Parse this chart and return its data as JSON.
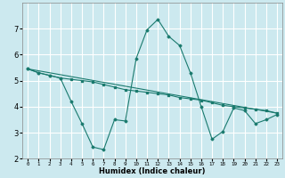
{
  "xlabel": "Humidex (Indice chaleur)",
  "ylabel": "",
  "background_color": "#cce9ef",
  "grid_color": "#ffffff",
  "line_color": "#1a7a6e",
  "xlim": [
    -0.5,
    23.5
  ],
  "ylim": [
    2,
    8
  ],
  "yticks": [
    2,
    3,
    4,
    5,
    6,
    7
  ],
  "xticks": [
    0,
    1,
    2,
    3,
    4,
    5,
    6,
    7,
    8,
    9,
    10,
    11,
    12,
    13,
    14,
    15,
    16,
    17,
    18,
    19,
    20,
    21,
    22,
    23
  ],
  "series1_x": [
    0,
    1,
    2,
    3,
    4,
    5,
    6,
    7,
    8,
    9,
    10,
    11,
    12,
    13,
    14,
    15,
    16,
    17,
    18,
    19,
    20,
    21,
    22,
    23
  ],
  "series1_y": [
    5.45,
    5.3,
    5.2,
    5.1,
    5.05,
    5.0,
    4.95,
    4.85,
    4.75,
    4.65,
    4.6,
    4.55,
    4.5,
    4.45,
    4.35,
    4.3,
    4.25,
    4.15,
    4.05,
    4.0,
    3.95,
    3.9,
    3.85,
    3.75
  ],
  "series2_x": [
    0,
    1,
    2,
    3,
    4,
    5,
    6,
    7,
    8,
    9,
    10,
    11,
    12,
    13,
    14,
    15,
    16,
    17,
    18,
    19,
    20,
    21,
    22,
    23
  ],
  "series2_y": [
    5.45,
    5.3,
    5.2,
    5.1,
    4.2,
    3.35,
    2.45,
    2.35,
    3.5,
    3.45,
    5.85,
    6.95,
    7.35,
    6.7,
    6.35,
    5.3,
    4.0,
    2.75,
    3.05,
    3.95,
    3.85,
    3.35,
    3.5,
    3.7
  ],
  "series3_x": [
    0,
    23
  ],
  "series3_y": [
    5.45,
    3.75
  ]
}
